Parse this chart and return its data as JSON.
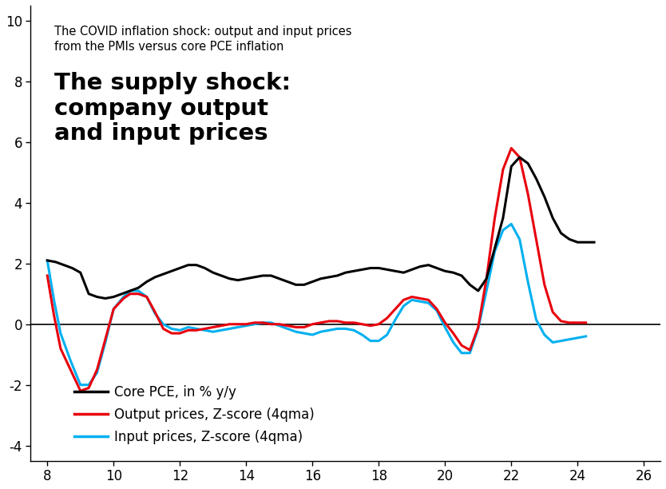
{
  "title_small": "The COVID inflation shock: output and input prices\nfrom the PMIs versus core PCE inflation",
  "title_large": "The supply shock:\ncompany output\nand input prices",
  "legend": [
    {
      "label": "Core PCE, in % y/y",
      "color": "#000000"
    },
    {
      "label": "Output prices, Z-score (4qma)",
      "color": "#e8000d"
    },
    {
      "label": "Input prices, Z-score (4qma)",
      "color": "#00b0f0"
    }
  ],
  "xlim": [
    7.5,
    26.5
  ],
  "ylim": [
    -4.5,
    10.5
  ],
  "xticks": [
    8,
    10,
    12,
    14,
    16,
    18,
    20,
    22,
    24,
    26
  ],
  "yticks": [
    -4,
    -2,
    0,
    2,
    4,
    6,
    8,
    10
  ],
  "core_pce": {
    "x": [
      8.0,
      8.25,
      8.5,
      8.75,
      9.0,
      9.25,
      9.5,
      9.75,
      10.0,
      10.25,
      10.5,
      10.75,
      11.0,
      11.25,
      11.5,
      11.75,
      12.0,
      12.25,
      12.5,
      12.75,
      13.0,
      13.25,
      13.5,
      13.75,
      14.0,
      14.25,
      14.5,
      14.75,
      15.0,
      15.25,
      15.5,
      15.75,
      16.0,
      16.25,
      16.5,
      16.75,
      17.0,
      17.25,
      17.5,
      17.75,
      18.0,
      18.25,
      18.5,
      18.75,
      19.0,
      19.25,
      19.5,
      19.75,
      20.0,
      20.25,
      20.5,
      20.75,
      21.0,
      21.25,
      21.5,
      21.75,
      22.0,
      22.25,
      22.5,
      22.75,
      23.0,
      23.25,
      23.5,
      23.75,
      24.0,
      24.5
    ],
    "y": [
      2.1,
      2.05,
      1.95,
      1.85,
      1.7,
      1.0,
      0.9,
      0.85,
      0.9,
      1.0,
      1.1,
      1.2,
      1.4,
      1.55,
      1.65,
      1.75,
      1.85,
      1.95,
      1.95,
      1.85,
      1.7,
      1.6,
      1.5,
      1.45,
      1.5,
      1.55,
      1.6,
      1.6,
      1.5,
      1.4,
      1.3,
      1.3,
      1.4,
      1.5,
      1.55,
      1.6,
      1.7,
      1.75,
      1.8,
      1.85,
      1.85,
      1.8,
      1.75,
      1.7,
      1.8,
      1.9,
      1.95,
      1.85,
      1.75,
      1.7,
      1.6,
      1.3,
      1.1,
      1.5,
      2.5,
      3.5,
      5.2,
      5.5,
      5.3,
      4.8,
      4.2,
      3.5,
      3.0,
      2.8,
      2.7,
      2.7
    ]
  },
  "output_prices": {
    "x": [
      8.0,
      8.2,
      8.4,
      8.7,
      9.0,
      9.25,
      9.5,
      9.75,
      10.0,
      10.3,
      10.5,
      10.75,
      11.0,
      11.25,
      11.5,
      11.75,
      12.0,
      12.25,
      12.5,
      12.75,
      13.0,
      13.25,
      13.5,
      13.75,
      14.0,
      14.25,
      14.5,
      14.75,
      15.0,
      15.25,
      15.5,
      15.75,
      16.0,
      16.25,
      16.5,
      16.75,
      17.0,
      17.25,
      17.5,
      17.75,
      18.0,
      18.25,
      18.5,
      18.75,
      19.0,
      19.25,
      19.5,
      19.75,
      20.0,
      20.25,
      20.5,
      20.75,
      21.0,
      21.25,
      21.5,
      21.75,
      22.0,
      22.25,
      22.5,
      22.75,
      23.0,
      23.25,
      23.5,
      23.75,
      24.0,
      24.25
    ],
    "y": [
      1.6,
      0.3,
      -0.8,
      -1.5,
      -2.2,
      -2.1,
      -1.5,
      -0.5,
      0.5,
      0.85,
      1.0,
      1.0,
      0.9,
      0.4,
      -0.15,
      -0.3,
      -0.3,
      -0.2,
      -0.2,
      -0.15,
      -0.1,
      -0.05,
      0.0,
      0.0,
      0.0,
      0.05,
      0.05,
      0.0,
      0.0,
      -0.05,
      -0.1,
      -0.1,
      0.0,
      0.05,
      0.1,
      0.1,
      0.05,
      0.05,
      0.0,
      -0.05,
      0.0,
      0.2,
      0.5,
      0.8,
      0.9,
      0.85,
      0.8,
      0.5,
      0.05,
      -0.3,
      -0.7,
      -0.85,
      -0.1,
      1.5,
      3.5,
      5.1,
      5.8,
      5.5,
      4.3,
      2.8,
      1.3,
      0.4,
      0.1,
      0.05,
      0.05,
      0.05
    ]
  },
  "input_prices": {
    "x": [
      8.0,
      8.2,
      8.4,
      8.7,
      9.0,
      9.25,
      9.5,
      9.75,
      10.0,
      10.3,
      10.5,
      10.75,
      11.0,
      11.25,
      11.5,
      11.75,
      12.0,
      12.25,
      12.5,
      12.75,
      13.0,
      13.25,
      13.5,
      13.75,
      14.0,
      14.25,
      14.5,
      14.75,
      15.0,
      15.25,
      15.5,
      15.75,
      16.0,
      16.25,
      16.5,
      16.75,
      17.0,
      17.25,
      17.5,
      17.75,
      18.0,
      18.25,
      18.5,
      18.75,
      19.0,
      19.25,
      19.5,
      19.75,
      20.0,
      20.25,
      20.5,
      20.75,
      21.0,
      21.25,
      21.5,
      21.75,
      22.0,
      22.25,
      22.5,
      22.75,
      23.0,
      23.25,
      23.5,
      23.75,
      24.0,
      24.25
    ],
    "y": [
      2.1,
      0.8,
      -0.3,
      -1.2,
      -2.0,
      -2.0,
      -1.6,
      -0.6,
      0.5,
      0.9,
      1.1,
      1.1,
      0.9,
      0.35,
      0.0,
      -0.15,
      -0.2,
      -0.1,
      -0.15,
      -0.2,
      -0.25,
      -0.2,
      -0.15,
      -0.1,
      -0.05,
      0.0,
      0.05,
      0.05,
      -0.05,
      -0.15,
      -0.25,
      -0.3,
      -0.35,
      -0.25,
      -0.2,
      -0.15,
      -0.15,
      -0.2,
      -0.35,
      -0.55,
      -0.55,
      -0.35,
      0.15,
      0.6,
      0.8,
      0.75,
      0.7,
      0.45,
      -0.1,
      -0.6,
      -0.95,
      -0.95,
      -0.15,
      1.1,
      2.4,
      3.1,
      3.3,
      2.8,
      1.4,
      0.15,
      -0.35,
      -0.6,
      -0.55,
      -0.5,
      -0.45,
      -0.4
    ]
  },
  "line_width": 2.2,
  "background_color": "#ffffff"
}
